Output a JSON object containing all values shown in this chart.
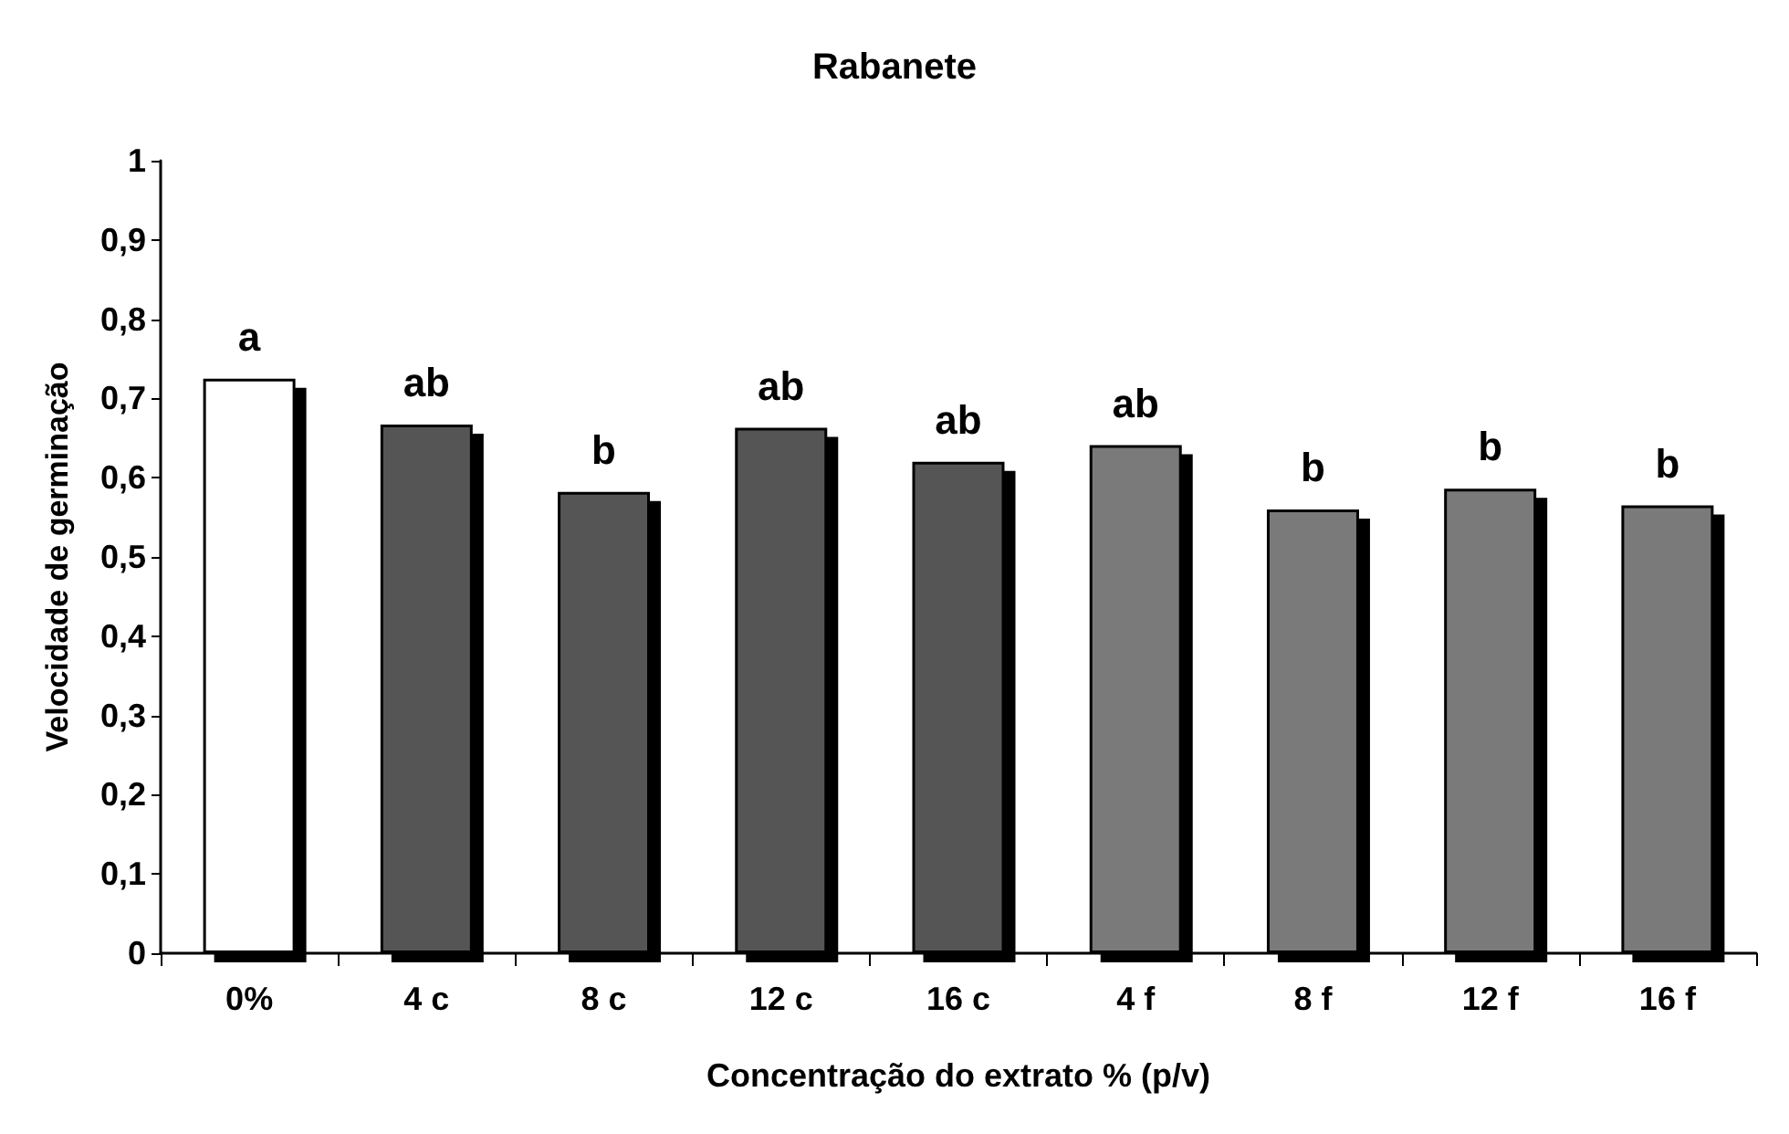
{
  "chart_data": {
    "type": "bar",
    "title": "Rabanete",
    "xlabel": "Concentração do extrato % (p/v)",
    "ylabel": "Velocidade de germinação",
    "categories": [
      "0%",
      "4 c",
      "8 c",
      "12 c",
      "16 c",
      "4 f",
      "8 f",
      "12 f",
      "16 f"
    ],
    "values": [
      0.725,
      0.667,
      0.582,
      0.663,
      0.62,
      0.641,
      0.56,
      0.586,
      0.565
    ],
    "colors": [
      "#ffffff",
      "#555555",
      "#555555",
      "#555555",
      "#555555",
      "#7a7a7a",
      "#7a7a7a",
      "#7a7a7a",
      "#7a7a7a"
    ],
    "ylim": [
      0,
      1
    ],
    "yticks": [
      0,
      {
        "value": 0.1,
        "label": "0,1"
      },
      {
        "value": 0.2,
        "label": "0,2"
      },
      {
        "value": 0.3,
        "label": "0,3"
      },
      {
        "value": 0.4,
        "label": "0,4"
      },
      {
        "value": 0.5,
        "label": "0,5"
      },
      {
        "value": 0.6,
        "label": "0,6"
      },
      {
        "value": 0.7,
        "label": "0,7"
      },
      {
        "value": 0.8,
        "label": "0,8"
      },
      {
        "value": 0.9,
        "label": "0,9"
      },
      1
    ],
    "annotations": [
      {
        "text": "a",
        "x": "0%",
        "y": 0.725
      },
      {
        "text": "ab",
        "x": "4 c",
        "y": 0.667
      },
      {
        "text": "b",
        "x": "8 c",
        "y": 0.582
      },
      {
        "text": "ab",
        "x": "12 c",
        "y": 0.663
      },
      {
        "text": "ab",
        "x": "16 c",
        "y": 0.62
      },
      {
        "text": "ab",
        "x": "4 f",
        "y": 0.641
      },
      {
        "text": "b",
        "x": "8 f",
        "y": 0.56
      },
      {
        "text": "b",
        "x": "12 f",
        "y": 0.586
      },
      {
        "text": "b",
        "x": "16 f",
        "y": 0.565
      }
    ]
  }
}
